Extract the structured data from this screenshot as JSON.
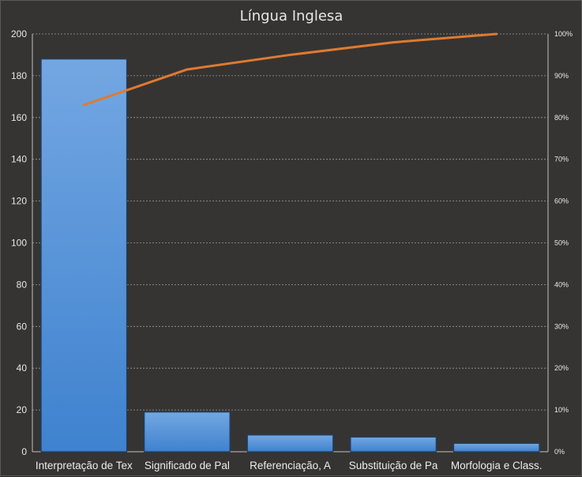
{
  "chart_data": {
    "type": "bar",
    "title": "Língua Inglesa",
    "categories": [
      "Interpretação de Tex",
      "Significado de Pal",
      "Referenciação, A",
      "Substituição de Pa",
      "Morfologia e Class."
    ],
    "series": [
      {
        "type": "bar",
        "values": [
          188,
          19,
          8,
          7,
          4
        ],
        "color": "#4a8ad4"
      },
      {
        "type": "line",
        "axis": "right",
        "values": [
          83,
          91.5,
          95,
          98,
          100
        ],
        "color": "#e07a2f"
      }
    ],
    "ylim": [
      0,
      200
    ],
    "yticks": [
      "0",
      "20",
      "40",
      "60",
      "80",
      "100",
      "120",
      "140",
      "160",
      "180",
      "200"
    ],
    "y2lim": [
      0,
      100
    ],
    "y2ticks": [
      "0%",
      "10%",
      "20%",
      "30%",
      "40%",
      "50%",
      "60%",
      "70%",
      "80%",
      "90%",
      "100%"
    ],
    "grid": true
  }
}
